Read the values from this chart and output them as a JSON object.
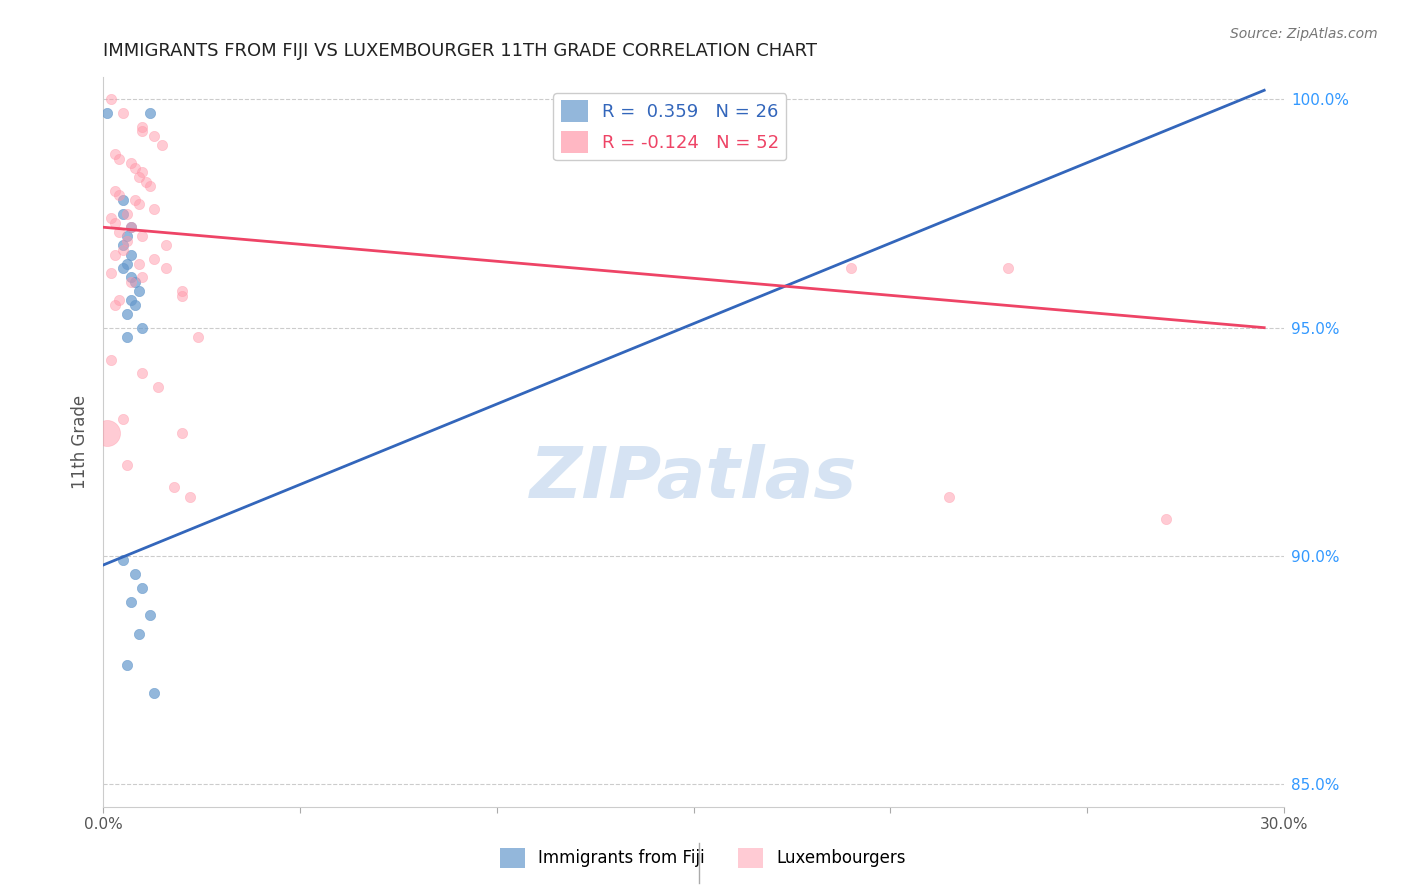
{
  "title": "IMMIGRANTS FROM FIJI VS LUXEMBOURGER 11TH GRADE CORRELATION CHART",
  "source": "Source: ZipAtlas.com",
  "ylabel": "11th Grade",
  "x_min": 0.0,
  "x_max": 0.3,
  "y_min": 0.845,
  "y_max": 1.005,
  "x_ticks": [
    0.0,
    0.05,
    0.1,
    0.15,
    0.2,
    0.25,
    0.3
  ],
  "x_tick_labels": [
    "0.0%",
    "",
    "",
    "",
    "",
    "",
    "30.0%"
  ],
  "y_ticks_right": [
    0.85,
    0.9,
    0.95,
    1.0
  ],
  "y_tick_labels_right": [
    "85.0%",
    "90.0%",
    "95.0%",
    "100.0%"
  ],
  "grid_color": "#cccccc",
  "background_color": "#ffffff",
  "blue_color": "#6699cc",
  "pink_color": "#ff99aa",
  "legend_R_blue": "0.359",
  "legend_N_blue": "26",
  "legend_R_pink": "-0.124",
  "legend_N_pink": "52",
  "blue_dots": [
    [
      0.001,
      0.997
    ],
    [
      0.012,
      0.997
    ],
    [
      0.005,
      0.978
    ],
    [
      0.005,
      0.975
    ],
    [
      0.007,
      0.972
    ],
    [
      0.006,
      0.97
    ],
    [
      0.005,
      0.968
    ],
    [
      0.007,
      0.966
    ],
    [
      0.006,
      0.964
    ],
    [
      0.005,
      0.963
    ],
    [
      0.007,
      0.961
    ],
    [
      0.008,
      0.96
    ],
    [
      0.009,
      0.958
    ],
    [
      0.007,
      0.956
    ],
    [
      0.008,
      0.955
    ],
    [
      0.006,
      0.953
    ],
    [
      0.01,
      0.95
    ],
    [
      0.006,
      0.948
    ],
    [
      0.005,
      0.899
    ],
    [
      0.008,
      0.896
    ],
    [
      0.01,
      0.893
    ],
    [
      0.007,
      0.89
    ],
    [
      0.012,
      0.887
    ],
    [
      0.009,
      0.883
    ],
    [
      0.006,
      0.876
    ],
    [
      0.013,
      0.87
    ]
  ],
  "pink_dots": [
    [
      0.002,
      1.0
    ],
    [
      0.005,
      0.997
    ],
    [
      0.01,
      0.994
    ],
    [
      0.01,
      0.993
    ],
    [
      0.013,
      0.992
    ],
    [
      0.015,
      0.99
    ],
    [
      0.003,
      0.988
    ],
    [
      0.004,
      0.987
    ],
    [
      0.007,
      0.986
    ],
    [
      0.008,
      0.985
    ],
    [
      0.01,
      0.984
    ],
    [
      0.009,
      0.983
    ],
    [
      0.011,
      0.982
    ],
    [
      0.012,
      0.981
    ],
    [
      0.003,
      0.98
    ],
    [
      0.004,
      0.979
    ],
    [
      0.008,
      0.978
    ],
    [
      0.009,
      0.977
    ],
    [
      0.013,
      0.976
    ],
    [
      0.006,
      0.975
    ],
    [
      0.002,
      0.974
    ],
    [
      0.003,
      0.973
    ],
    [
      0.007,
      0.972
    ],
    [
      0.004,
      0.971
    ],
    [
      0.01,
      0.97
    ],
    [
      0.006,
      0.969
    ],
    [
      0.016,
      0.968
    ],
    [
      0.005,
      0.967
    ],
    [
      0.003,
      0.966
    ],
    [
      0.013,
      0.965
    ],
    [
      0.009,
      0.964
    ],
    [
      0.016,
      0.963
    ],
    [
      0.002,
      0.962
    ],
    [
      0.01,
      0.961
    ],
    [
      0.007,
      0.96
    ],
    [
      0.02,
      0.958
    ],
    [
      0.02,
      0.957
    ],
    [
      0.004,
      0.956
    ],
    [
      0.003,
      0.955
    ],
    [
      0.024,
      0.948
    ],
    [
      0.002,
      0.943
    ],
    [
      0.01,
      0.94
    ],
    [
      0.014,
      0.937
    ],
    [
      0.005,
      0.93
    ],
    [
      0.02,
      0.927
    ],
    [
      0.006,
      0.92
    ],
    [
      0.018,
      0.915
    ],
    [
      0.022,
      0.913
    ],
    [
      0.19,
      0.963
    ],
    [
      0.23,
      0.963
    ],
    [
      0.215,
      0.913
    ],
    [
      0.27,
      0.908
    ]
  ],
  "large_pink_dot": [
    0.001,
    0.927
  ],
  "large_pink_size": 350,
  "blue_line": [
    [
      0.0,
      0.898
    ],
    [
      0.295,
      1.002
    ]
  ],
  "pink_line": [
    [
      0.0,
      0.972
    ],
    [
      0.295,
      0.95
    ]
  ],
  "watermark": "ZIPatlas",
  "dot_size_blue": 55,
  "dot_size_pink": 55
}
